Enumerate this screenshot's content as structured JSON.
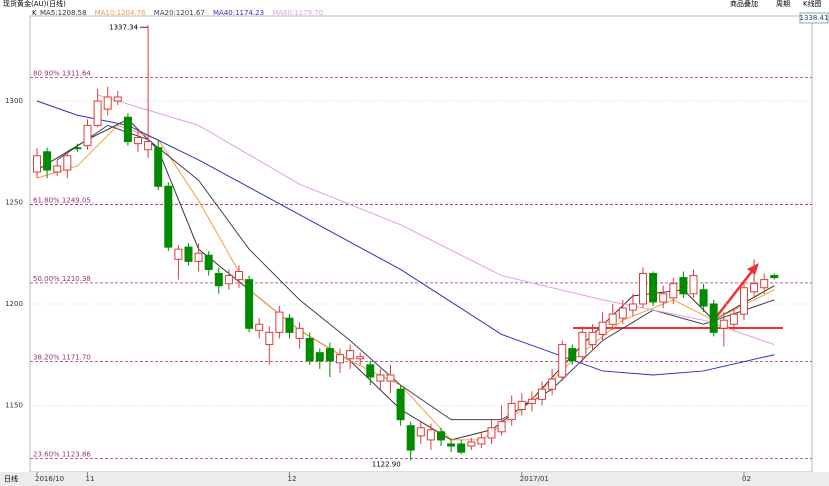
{
  "chart_data": {
    "type": "candlestick",
    "title": "现货黄金(AU)(日线)",
    "toolbar": [
      "商品叠加",
      "周期",
      "K线图"
    ],
    "right_value_label": "1338.41",
    "period_label": "日线",
    "max_label": "1337.34",
    "min_label": "1122.90",
    "categories": [
      "2016/10",
      null,
      null,
      null,
      null,
      "11",
      null,
      null,
      null,
      null,
      null,
      null,
      null,
      null,
      null,
      null,
      null,
      null,
      null,
      null,
      null,
      null,
      null,
      null,
      null,
      "12",
      null,
      null,
      null,
      null,
      null,
      null,
      null,
      null,
      null,
      null,
      null,
      null,
      null,
      null,
      null,
      null,
      null,
      null,
      null,
      null,
      null,
      null,
      "2017/01",
      null,
      null,
      null,
      null,
      null,
      null,
      null,
      null,
      null,
      null,
      null,
      null,
      null,
      null,
      null,
      null,
      null,
      null,
      null,
      null,
      null,
      "02",
      null,
      null,
      null
    ],
    "candles": {
      "name": "K",
      "up_color": "#e03c3c",
      "down_color": "#008a00",
      "open": [
        1265,
        1275,
        1265,
        1266,
        1277,
        1278,
        1288,
        1296,
        1300,
        1292,
        1279,
        1276,
        1277,
        1258,
        1222,
        1228,
        1221,
        1224,
        1215,
        1210,
        1212,
        1212,
        1187,
        1180,
        1186,
        1193,
        1183,
        1183,
        1176,
        1178,
        1171,
        1173,
        1173,
        1170,
        1162,
        1162,
        1158,
        1140,
        1135,
        1133,
        1137,
        1131,
        1131,
        1130,
        1131,
        1134,
        1137,
        1143,
        1148,
        1151,
        1153,
        1158,
        1164,
        1178,
        1174,
        1180,
        1185,
        1190,
        1193,
        1197,
        1200,
        1215,
        1201,
        1203,
        1213,
        1205,
        1207,
        1200,
        1188,
        1190,
        1195,
        1206,
        1208,
        1214
      ],
      "close": [
        1273,
        1266,
        1268,
        1273,
        1277,
        1288,
        1300,
        1302,
        1302,
        1280,
        1282,
        1280,
        1258,
        1228,
        1227,
        1221,
        1225,
        1217,
        1209,
        1214,
        1216,
        1188,
        1190,
        1186,
        1196,
        1186,
        1188,
        1172,
        1172,
        1172,
        1175,
        1177,
        1174,
        1164,
        1165,
        1165,
        1143,
        1128,
        1139,
        1138,
        1133,
        1130,
        1127,
        1132,
        1134,
        1139,
        1142,
        1151,
        1152,
        1153,
        1158,
        1163,
        1180,
        1172,
        1186,
        1186,
        1191,
        1195,
        1198,
        1200,
        1215,
        1201,
        1205,
        1210,
        1205,
        1214,
        1199,
        1186,
        1192,
        1195,
        1208,
        1210,
        1212,
        1213
      ],
      "high": [
        1277,
        1277,
        1271,
        1275,
        1279,
        1291,
        1306,
        1307,
        1305,
        1294,
        1286,
        1337.34,
        1281,
        1260,
        1229,
        1230,
        1230,
        1226,
        1218,
        1217,
        1219,
        1214,
        1193,
        1189,
        1199,
        1195,
        1191,
        1186,
        1178,
        1181,
        1178,
        1180,
        1176,
        1172,
        1168,
        1170,
        1160,
        1142,
        1142,
        1141,
        1139,
        1134,
        1133,
        1134,
        1137,
        1143,
        1150,
        1155,
        1156,
        1157,
        1162,
        1168,
        1182,
        1180,
        1189,
        1190,
        1196,
        1200,
        1202,
        1205,
        1218,
        1216,
        1209,
        1213,
        1216,
        1217,
        1210,
        1202,
        1196,
        1198,
        1212,
        1222,
        1215,
        1215
      ],
      "low": [
        1262,
        1262,
        1263,
        1262,
        1275,
        1276,
        1287,
        1293,
        1298,
        1278,
        1275,
        1272,
        1256,
        1226,
        1212,
        1219,
        1216,
        1214,
        1205,
        1207,
        1208,
        1186,
        1183,
        1170,
        1183,
        1183,
        1178,
        1170,
        1168,
        1164,
        1166,
        1168,
        1170,
        1160,
        1158,
        1156,
        1140,
        1122.9,
        1131,
        1128,
        1130,
        1127,
        1126,
        1128,
        1129,
        1131,
        1135,
        1140,
        1145,
        1147,
        1150,
        1155,
        1162,
        1170,
        1171,
        1177,
        1182,
        1187,
        1190,
        1194,
        1198,
        1199,
        1198,
        1200,
        1203,
        1203,
        1196,
        1184,
        1179,
        1187,
        1192,
        1203,
        1205,
        1212
      ]
    },
    "series": [
      {
        "name": "MA5:1208.58",
        "color": "#333333",
        "x": [
          0,
          5,
          9,
          12,
          16,
          21,
          26,
          31,
          36,
          41,
          45,
          49,
          54,
          59,
          64,
          67,
          73
        ],
        "values": [
          1266,
          1281,
          1291,
          1276,
          1227,
          1207,
          1187,
          1172,
          1148,
          1133,
          1138,
          1153,
          1180,
          1204,
          1207,
          1192,
          1209
        ]
      },
      {
        "name": "MA10:1204.76",
        "color": "#f0a040",
        "x": [
          0,
          4,
          8,
          12,
          16,
          21,
          26,
          31,
          36,
          41,
          44,
          48,
          53,
          58,
          63,
          67,
          73
        ],
        "values": [
          1262,
          1268,
          1288,
          1281,
          1251,
          1207,
          1187,
          1172,
          1160,
          1133,
          1133,
          1148,
          1172,
          1192,
          1202,
          1192,
          1207
        ]
      },
      {
        "name": "MA20:1201.67",
        "color": "#40405a",
        "x": [
          2,
          7,
          11,
          16,
          21,
          26,
          31,
          36,
          41,
          46,
          51,
          56,
          61,
          66,
          73
        ],
        "values": [
          1271,
          1288,
          1281,
          1261,
          1227,
          1202,
          1182,
          1160,
          1143,
          1143,
          1158,
          1182,
          1197,
          1190,
          1202
        ]
      },
      {
        "name": "MA40:1174.23",
        "color": "#3030c0",
        "x": [
          0,
          4,
          9,
          16,
          26,
          36,
          46,
          56,
          61,
          66,
          73
        ],
        "values": [
          1300,
          1293,
          1288,
          1271,
          1244,
          1217,
          1185,
          1167,
          1165,
          1167,
          1175
        ]
      },
      {
        "name": "MA60:1179.70",
        "color": "#e0a0e0",
        "x": [
          6,
          16,
          26,
          36,
          46,
          56,
          66,
          73
        ],
        "values": [
          1303,
          1288,
          1259,
          1239,
          1214,
          1202,
          1192,
          1180
        ]
      }
    ],
    "levels": [
      {
        "value": 1311.64,
        "label": "80.90% 1311.64"
      },
      {
        "value": 1249.05,
        "label": "61.80% 1249.05"
      },
      {
        "value": 1210.38,
        "label": "50.00% 1210.38"
      },
      {
        "value": 1171.7,
        "label": "38.20% 1171.70"
      },
      {
        "value": 1123.86,
        "label": "23.60% 1123.86"
      }
    ],
    "level_color": "#a03070",
    "ylim": [
      1117.2,
      1341.9
    ],
    "yticks": [
      1150,
      1200,
      1250,
      1300
    ],
    "grid": true
  }
}
